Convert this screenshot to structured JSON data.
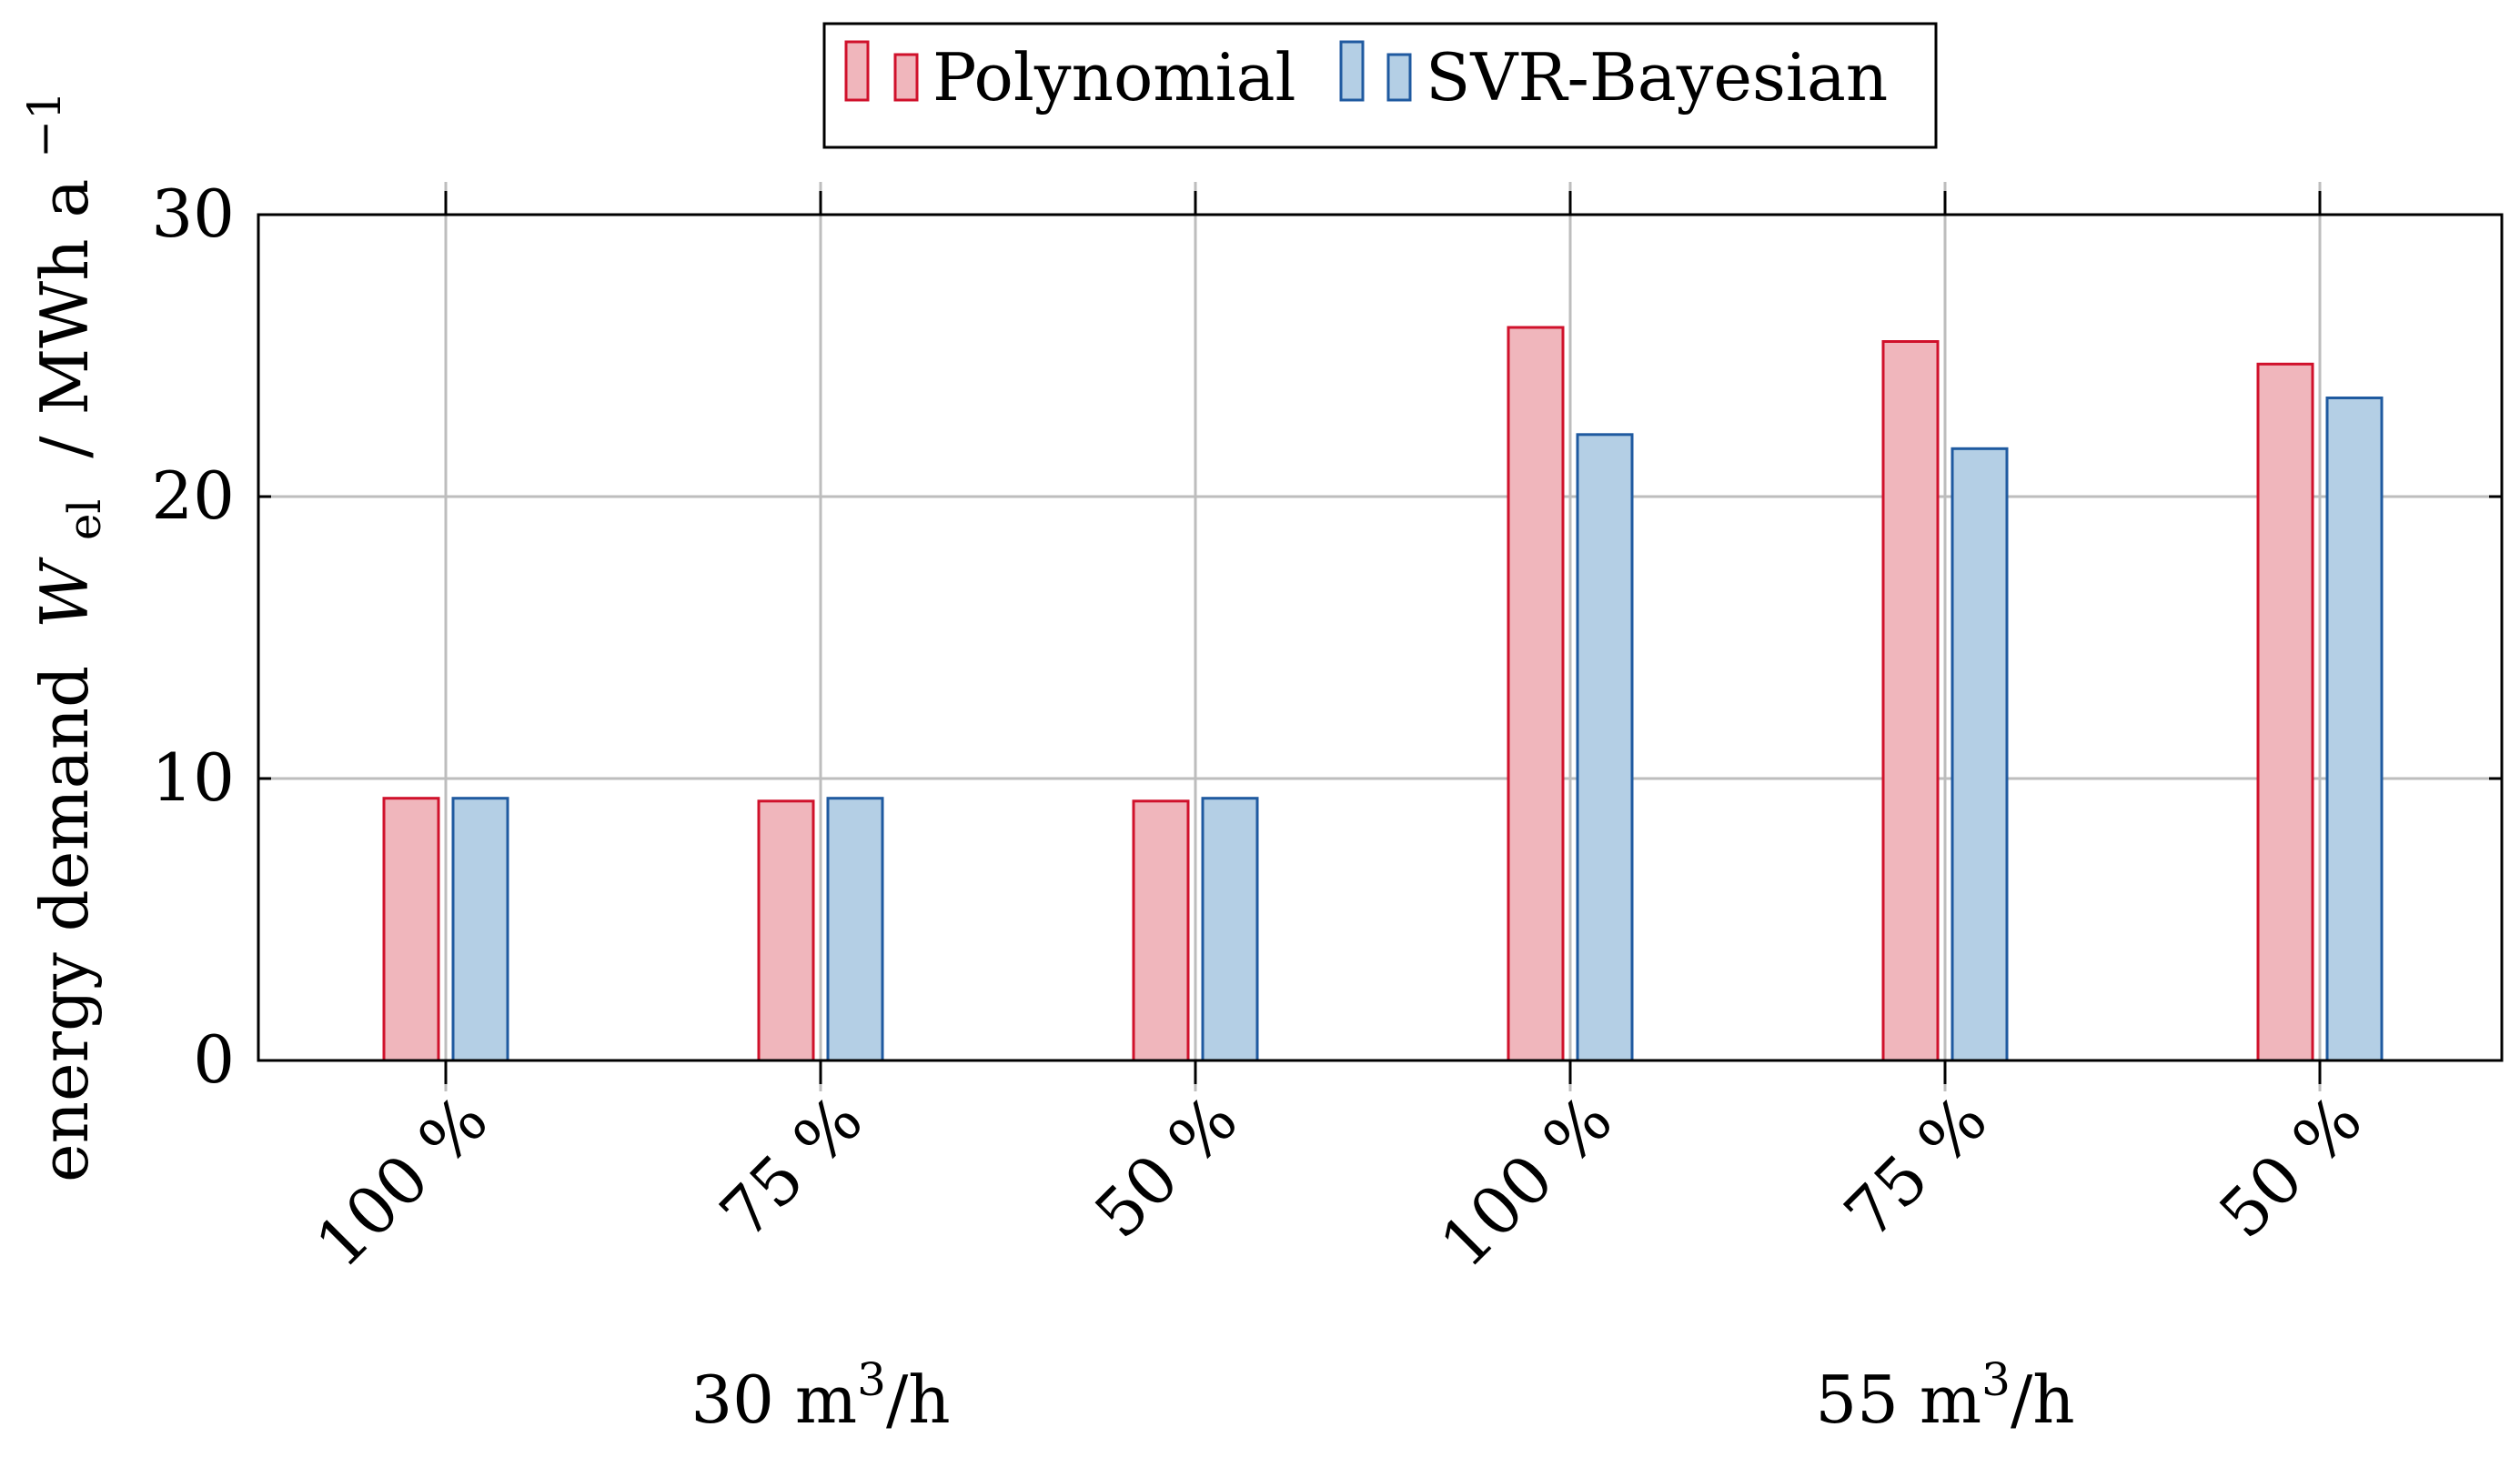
{
  "chart_data": {
    "type": "bar",
    "title": "",
    "xlabel": "",
    "ylabel": "energy demand",
    "ylabel_symbol": "W",
    "ylabel_subscript": "el",
    "ylabel_unit": "/ MWh a",
    "ylabel_unit_superscript": "−1",
    "ylim": [
      0,
      30
    ],
    "yticks": [
      "0",
      "10",
      "20",
      "30"
    ],
    "grid": true,
    "legend_position": "top-center",
    "categories": [
      "100 %",
      "75 %",
      "50 %",
      "100 %",
      "75 %",
      "50 %"
    ],
    "groups": [
      {
        "label_base": "30 m",
        "label_sup": "3",
        "label_tail": "/h",
        "categories": [
          0,
          1,
          2
        ]
      },
      {
        "label_base": "55 m",
        "label_sup": "3",
        "label_tail": "/h",
        "categories": [
          3,
          4,
          5
        ]
      }
    ],
    "series": [
      {
        "name": "Polynomial",
        "values": [
          9.3,
          9.2,
          9.2,
          26.0,
          25.5,
          24.7
        ],
        "fill": "#f0b6bc",
        "stroke": "#d0112b"
      },
      {
        "name": "SVR-Bayesian",
        "values": [
          9.3,
          9.3,
          9.3,
          22.2,
          21.7,
          23.5
        ],
        "fill": "#b4cfe5",
        "stroke": "#1f5aa0"
      }
    ]
  }
}
